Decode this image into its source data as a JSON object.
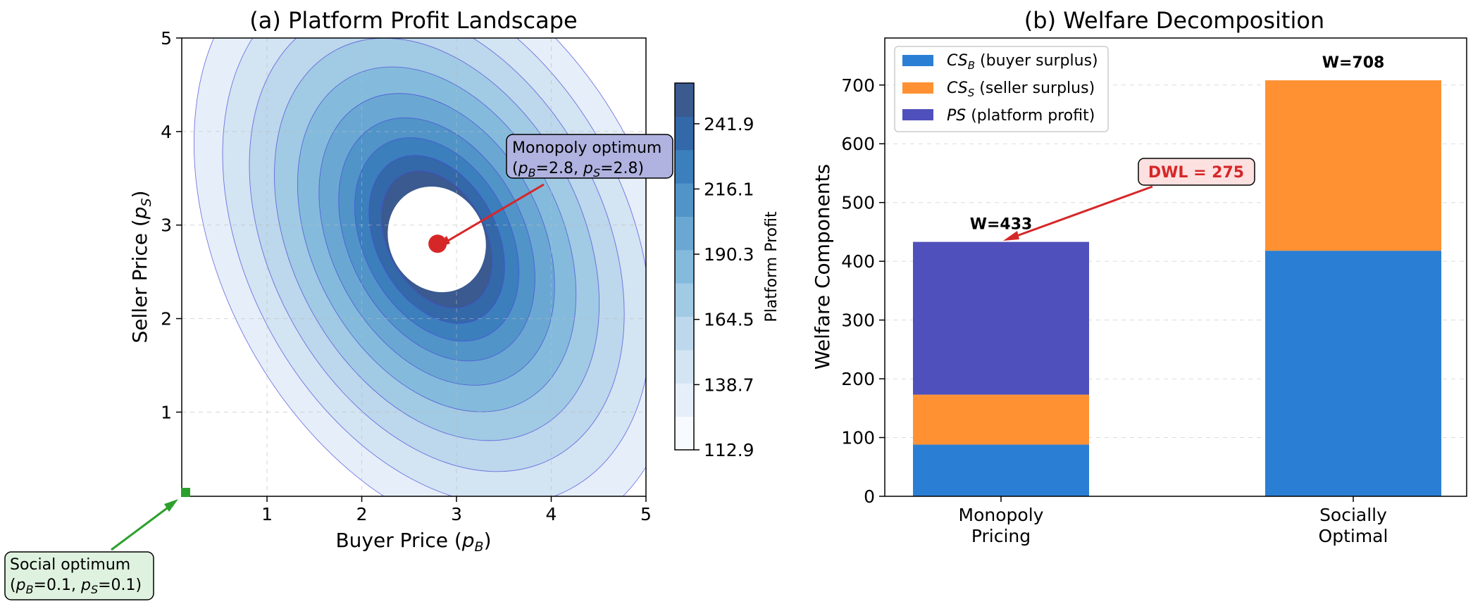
{
  "chart_data": [
    {
      "type": "contour",
      "title": "(a) Platform Profit Landscape",
      "xlabel": "Buyer Price (p_B)",
      "ylabel": "Seller Price (p_S)",
      "xlim": [
        0.1,
        5
      ],
      "ylim": [
        0.1,
        5
      ],
      "xticks": [
        "1",
        "2",
        "3",
        "4",
        "5"
      ],
      "yticks": [
        "1",
        "2",
        "3",
        "4",
        "5"
      ],
      "colorbar": {
        "label": "Platform Profit",
        "ticks": [
          "112.9",
          "138.7",
          "164.5",
          "190.3",
          "216.1",
          "241.9"
        ],
        "tick_values": [
          112.9,
          138.7,
          164.5,
          190.3,
          216.1,
          241.9
        ],
        "range": [
          112.9,
          258
        ]
      },
      "monopoly_optimum": {
        "pB": 2.8,
        "pS": 2.8,
        "label_line1": "Monopoly optimum",
        "label_line2": "(pB=2.8, pS=2.8)"
      },
      "social_optimum": {
        "pB": 0.1,
        "pS": 0.1,
        "label_line1": "Social optimum",
        "label_line2": "(pB=0.1, pS=0.1)"
      },
      "colors": {
        "monopoly_marker": "#d62728",
        "social_marker": "#2ca02c",
        "contour_line": "#3b3bd6",
        "monopoly_box": "#b0b3e0",
        "social_box": "#dff2df"
      }
    },
    {
      "type": "bar",
      "stacked": true,
      "title": "(b) Welfare Decomposition",
      "ylabel": "Welfare Components",
      "ylim": [
        0,
        780
      ],
      "yticks": [
        "0",
        "100",
        "200",
        "300",
        "400",
        "500",
        "600",
        "700"
      ],
      "categories": [
        {
          "line1": "Monopoly",
          "line2": "Pricing"
        },
        {
          "line1": "Socially",
          "line2": "Optimal"
        }
      ],
      "series": [
        {
          "name": "CS_B",
          "label_main": "CS",
          "label_sub": "B",
          "label_rest": " (buyer surplus)",
          "color": "#2a7fd4",
          "values": [
            88,
            418
          ]
        },
        {
          "name": "CS_S",
          "label_main": "CS",
          "label_sub": "S",
          "label_rest": " (seller surplus)",
          "color": "#ff9133",
          "values": [
            85,
            290
          ]
        },
        {
          "name": "PS",
          "label_main": "PS",
          "label_sub": "",
          "label_rest": " (platform profit)",
          "color": "#5050bc",
          "values": [
            260,
            0
          ]
        }
      ],
      "totals": [
        433,
        708
      ],
      "total_labels": [
        "W=433",
        "W=708"
      ],
      "dwl": {
        "label": "DWL = 275",
        "value": 275,
        "text_color": "#d62728",
        "box_color": "#fde0e0"
      }
    }
  ]
}
